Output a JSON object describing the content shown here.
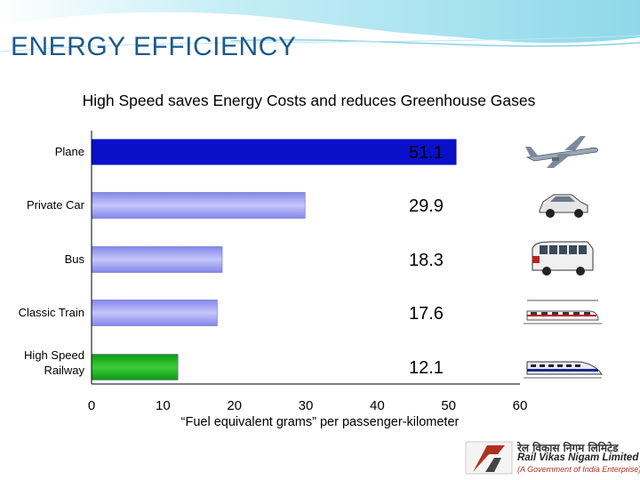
{
  "slide": {
    "title": "ENERGY EFFICIENCY",
    "subtitle": "High Speed  saves Energy Costs and reduces Greenhouse Gases"
  },
  "chart_data": {
    "type": "bar",
    "orientation": "horizontal",
    "title": "High Speed  saves Energy Costs and reduces Greenhouse Gases",
    "xlabel": "“Fuel equivalent grams” per passenger-kilometer",
    "ylabel": "",
    "xlim": [
      0,
      60
    ],
    "xticks": [
      "0",
      "10",
      "20",
      "30",
      "40",
      "50",
      "60"
    ],
    "grid": false,
    "categories": [
      [
        "Plane"
      ],
      [
        "Private Car"
      ],
      [
        "Bus"
      ],
      [
        "Classic Train"
      ],
      [
        "High Speed",
        "Railway"
      ]
    ],
    "values": [
      51.1,
      29.9,
      18.3,
      17.6,
      12.1
    ],
    "value_labels": [
      "51.1",
      "29.9",
      "18.3",
      "17.6",
      "12.1"
    ],
    "icons": [
      "airplane-icon",
      "car-icon",
      "bus-icon",
      "train-icon",
      "high-speed-train-icon"
    ],
    "colors": {
      "plane": "#0a10c8",
      "default": "#9a9cf2",
      "high_speed": "#10a010",
      "axis": "#000000"
    }
  },
  "logo": {
    "hindi": "रेल विकास निगम लिमिटेड",
    "name": "Rail Vikas Nigam Limited",
    "tagline": "(A Government of India Enterprise)"
  }
}
